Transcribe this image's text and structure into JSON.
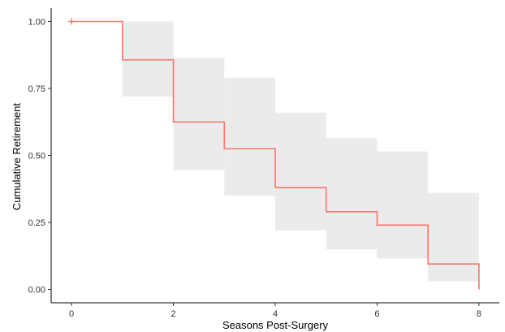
{
  "chart_data": {
    "type": "line",
    "xlabel": "Seasons Post-Surgery",
    "ylabel": "Cumulative Retirement",
    "xlim": [
      -0.4,
      8.4
    ],
    "ylim": [
      -0.05,
      1.05
    ],
    "xticks": [
      0,
      2,
      4,
      6,
      8
    ],
    "xtick_labels": [
      "0",
      "2",
      "4",
      "6",
      "8"
    ],
    "yticks": [
      0,
      0.25,
      0.5,
      0.75,
      1.0
    ],
    "ytick_labels": [
      "0.00",
      "0.25",
      "0.50",
      "0.75",
      "1.00"
    ],
    "grid": false,
    "legend": "none",
    "step_curve": {
      "style": "step",
      "color": "#f8766d",
      "x": [
        0,
        1,
        2,
        3,
        4,
        5,
        6,
        7,
        8
      ],
      "y": [
        1.0,
        0.857,
        0.625,
        0.525,
        0.38,
        0.29,
        0.24,
        0.095,
        0.0
      ]
    },
    "confidence_band": {
      "color": "#ebebeb",
      "x": [
        1,
        2,
        3,
        4,
        5,
        6,
        7,
        8
      ],
      "lower": [
        0.72,
        0.445,
        0.35,
        0.22,
        0.15,
        0.115,
        0.03,
        0.03
      ],
      "upper": [
        1.0,
        0.865,
        0.79,
        0.66,
        0.565,
        0.515,
        0.36,
        0.36
      ]
    },
    "censor_marks": [
      {
        "x": 0,
        "y": 1.0
      }
    ]
  }
}
